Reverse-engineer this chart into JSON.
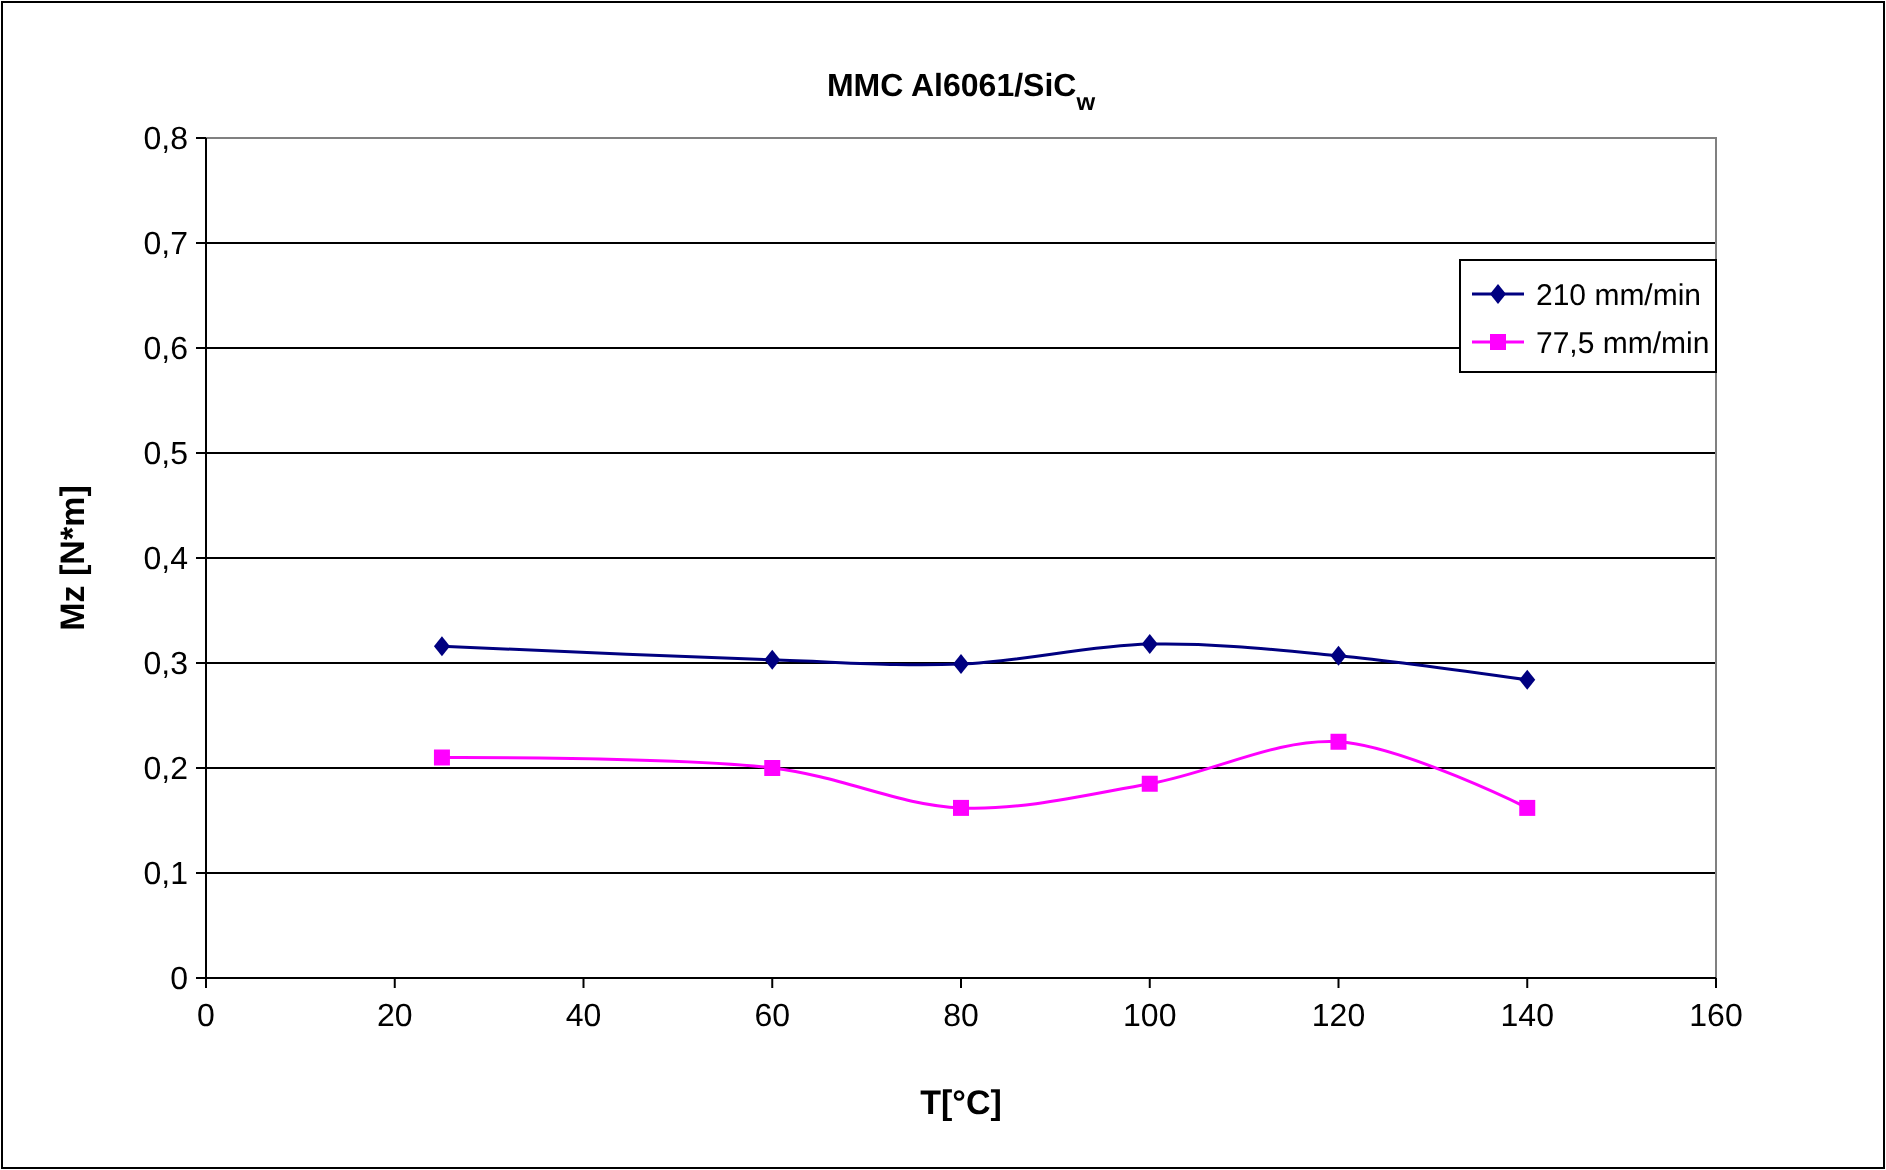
{
  "chart_data": {
    "type": "line",
    "title": "MMC Al6061/SiC$_{w}$",
    "xlabel": "T[°C]",
    "ylabel": "Mz [N*m]",
    "xlim": [
      0,
      160
    ],
    "xticks": [
      0,
      20,
      40,
      60,
      80,
      100,
      120,
      140,
      160
    ],
    "ylim": [
      0,
      0.8
    ],
    "yticks": [
      {
        "value": 0,
        "label": "0"
      },
      {
        "value": 0.1,
        "label": "0,1"
      },
      {
        "value": 0.2,
        "label": "0,2"
      },
      {
        "value": 0.3,
        "label": "0,3"
      },
      {
        "value": 0.4,
        "label": "0,4"
      },
      {
        "value": 0.5,
        "label": "0,5"
      },
      {
        "value": 0.6,
        "label": "0,6"
      },
      {
        "value": 0.7,
        "label": "0,7"
      },
      {
        "value": 0.8,
        "label": "0,8"
      }
    ],
    "grid": "y",
    "legend": "top right",
    "series": [
      {
        "name": "210 mm/min",
        "color": "#000080",
        "marker": "diamond",
        "x": [
          25,
          60,
          80,
          100,
          120,
          140
        ],
        "values": [
          0.316,
          0.303,
          0.299,
          0.318,
          0.307,
          0.284
        ]
      },
      {
        "name": "77,5 mm/min",
        "color": "#ff00ff",
        "marker": "square",
        "x": [
          25,
          60,
          80,
          100,
          120,
          140
        ],
        "values": [
          0.21,
          0.2,
          0.162,
          0.185,
          0.225,
          0.162
        ]
      }
    ]
  }
}
